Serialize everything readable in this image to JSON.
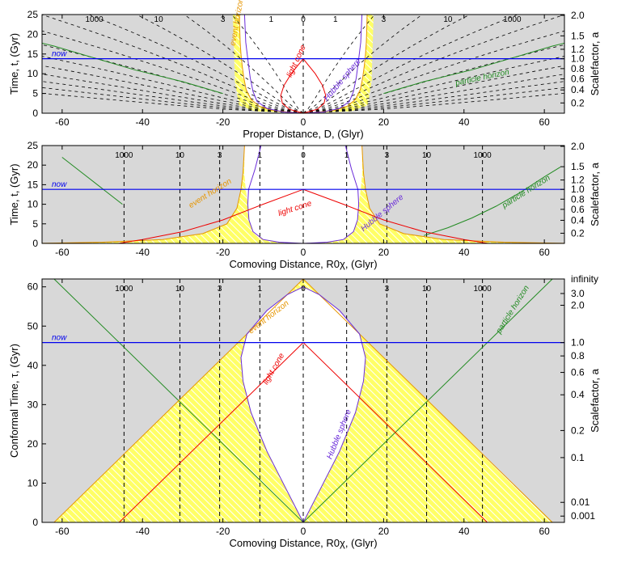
{
  "chart_data": [
    {
      "type": "line",
      "xlabel": "Proper Distance, D, (Glyr)",
      "ylabel": "Time, t, (Gyr)",
      "ylabel_right": "Scalefactor, a",
      "xlim": [
        -65,
        65
      ],
      "ylim": [
        0,
        25
      ],
      "xticks": [
        -60,
        -40,
        -20,
        0,
        20,
        40,
        60
      ],
      "yticks": [
        0,
        5,
        10,
        15,
        20,
        25
      ],
      "scalefactor_ticks": [
        {
          "label": "2.0",
          "t": 24.8
        },
        {
          "label": "1.5",
          "t": 19.6
        },
        {
          "label": "1.2",
          "t": 16.2
        },
        {
          "label": "1.0",
          "t": 13.8
        },
        {
          "label": "0.8",
          "t": 11.3
        },
        {
          "label": "0.6",
          "t": 8.7
        },
        {
          "label": "0.4",
          "t": 5.9
        },
        {
          "label": "0.2",
          "t": 2.6
        }
      ],
      "now_label": "now",
      "now_t": 13.8,
      "grid_labels": [
        "1000",
        "10",
        "3",
        "1",
        "0",
        "1",
        "3",
        "10",
        "1000"
      ],
      "labels": {
        "event_horizon": "event horizon",
        "light_cone": "light cone",
        "hubble_sphere": "Hubble sphere",
        "particle_horizon": "particle horizon"
      },
      "colors": {
        "now": "#0000ee",
        "event_horizon": "#e69500",
        "light_cone": "#ee0000",
        "hubble_sphere": "#6a2bd9",
        "particle_horizon": "#228b22",
        "shade": "#d8d8d8",
        "hatch": "#ffff55"
      }
    },
    {
      "type": "line",
      "xlabel": "Comoving Distance, R0χ, (Glyr)",
      "ylabel": "Time, t, (Gyr)",
      "ylabel_right": "Scalefactor, a",
      "xlim": [
        -65,
        65
      ],
      "ylim": [
        0,
        25
      ],
      "xticks": [
        -60,
        -40,
        -20,
        0,
        20,
        40,
        60
      ],
      "yticks": [
        0,
        5,
        10,
        15,
        20,
        25
      ],
      "scalefactor_ticks": [
        {
          "label": "2.0",
          "t": 24.8
        },
        {
          "label": "1.5",
          "t": 19.6
        },
        {
          "label": "1.2",
          "t": 16.2
        },
        {
          "label": "1.0",
          "t": 13.8
        },
        {
          "label": "0.8",
          "t": 11.3
        },
        {
          "label": "0.6",
          "t": 8.7
        },
        {
          "label": "0.4",
          "t": 5.9
        },
        {
          "label": "0.2",
          "t": 2.6
        }
      ],
      "now_label": "now",
      "now_t": 13.8,
      "redshift_lines": [
        {
          "label": "1000",
          "x": -44.6
        },
        {
          "label": "10",
          "x": -30.7
        },
        {
          "label": "3",
          "x": -20.8
        },
        {
          "label": "1",
          "x": -10.8
        },
        {
          "label": "0",
          "x": 0
        },
        {
          "label": "1",
          "x": 10.8
        },
        {
          "label": "3",
          "x": 20.8
        },
        {
          "label": "10",
          "x": 30.7
        },
        {
          "label": "1000",
          "x": 44.6
        }
      ],
      "labels": {
        "event_horizon": "event horizon",
        "light_cone": "light cone",
        "hubble_sphere": "Hubble sphere",
        "particle_horizon": "particle horizon"
      }
    },
    {
      "type": "line",
      "xlabel": "Comoving Distance, R0χ, (Glyr)",
      "ylabel": "Conformal Time, τ, (Gyr)",
      "ylabel_right": "Scalefactor, a",
      "xlim": [
        -65,
        65
      ],
      "ylim": [
        0,
        62
      ],
      "xticks": [
        -60,
        -40,
        -20,
        0,
        20,
        40,
        60
      ],
      "yticks": [
        0,
        10,
        20,
        30,
        40,
        50,
        60
      ],
      "scalefactor_ticks": [
        {
          "label": "infinity",
          "tau": 62
        },
        {
          "label": "3.0",
          "tau": 58.3
        },
        {
          "label": "2.0",
          "tau": 55.3
        },
        {
          "label": "1.0",
          "tau": 45.8
        },
        {
          "label": "0.8",
          "tau": 42.4
        },
        {
          "label": "0.6",
          "tau": 38.2
        },
        {
          "label": "0.4",
          "tau": 32.5
        },
        {
          "label": "0.2",
          "tau": 23.4
        },
        {
          "label": "0.1",
          "tau": 16.5
        },
        {
          "label": "0.01",
          "tau": 5.1
        },
        {
          "label": "0.001",
          "tau": 1.6
        }
      ],
      "now_label": "now",
      "now_tau": 45.8,
      "redshift_lines": [
        {
          "label": "1000",
          "x": -44.6
        },
        {
          "label": "10",
          "x": -30.7
        },
        {
          "label": "3",
          "x": -20.8
        },
        {
          "label": "1",
          "x": -10.8
        },
        {
          "label": "0",
          "x": 0
        },
        {
          "label": "1",
          "x": 10.8
        },
        {
          "label": "3",
          "x": 20.8
        },
        {
          "label": "10",
          "x": 30.7
        },
        {
          "label": "1000",
          "x": 44.6
        }
      ],
      "labels": {
        "event_horizon": "event horizon",
        "light_cone": "light cone",
        "hubble_sphere": "Hubble sphere",
        "particle_horizon": "particle horizon"
      }
    }
  ]
}
